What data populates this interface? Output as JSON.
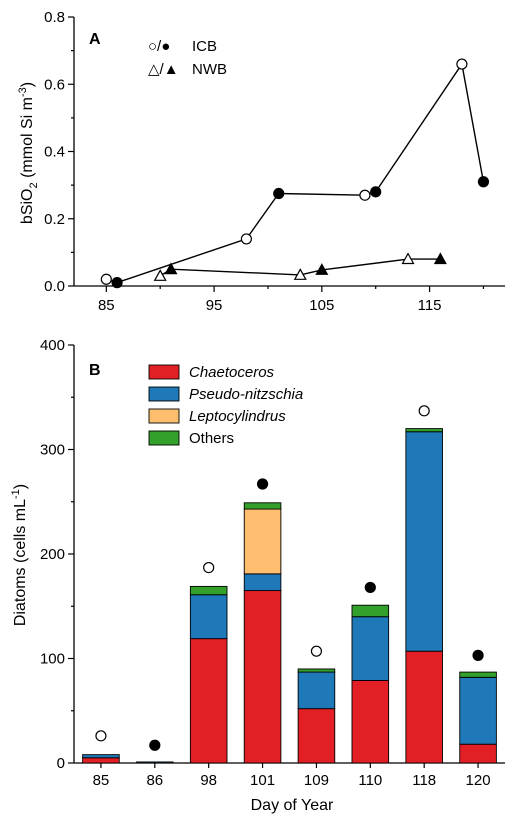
{
  "chart_data": [
    {
      "panel": "A",
      "type": "line",
      "ylabel_main": "bSiO",
      "ylabel_sub": "2",
      "ylabel_unit_pre": " (mmol Si m",
      "ylabel_unit_sup": "-3",
      "ylabel_unit_post": ")",
      "ylim": [
        0,
        0.8
      ],
      "yticks": [
        "0.0",
        "0.2",
        "0.4",
        "0.6",
        "0.8"
      ],
      "xlim": [
        82,
        122
      ],
      "xticks": [
        "85",
        "95",
        "105",
        "115"
      ],
      "grid": false,
      "legend_position": "top-left",
      "series": [
        {
          "name": "ICB",
          "legend_symbol": "○/●",
          "marker": "circle",
          "points": [
            {
              "x": 85,
              "y": 0.02,
              "filled": false
            },
            {
              "x": 86,
              "y": 0.01,
              "filled": true
            },
            {
              "x": 98,
              "y": 0.14,
              "filled": false
            },
            {
              "x": 101,
              "y": 0.275,
              "filled": true
            },
            {
              "x": 109,
              "y": 0.27,
              "filled": false
            },
            {
              "x": 110,
              "y": 0.28,
              "filled": true
            },
            {
              "x": 118,
              "y": 0.66,
              "filled": false
            },
            {
              "x": 120,
              "y": 0.31,
              "filled": true
            }
          ]
        },
        {
          "name": "NWB",
          "legend_symbol": "△/▲",
          "marker": "triangle",
          "points": [
            {
              "x": 90,
              "y": 0.03,
              "filled": false
            },
            {
              "x": 91,
              "y": 0.05,
              "filled": true
            },
            {
              "x": 103,
              "y": 0.033,
              "filled": false
            },
            {
              "x": 105,
              "y": 0.048,
              "filled": true
            },
            {
              "x": 113,
              "y": 0.08,
              "filled": false
            },
            {
              "x": 116,
              "y": 0.08,
              "filled": true
            }
          ]
        }
      ]
    },
    {
      "panel": "B",
      "type": "bar",
      "ylabel_main": "Diatoms (cells mL",
      "ylabel_sup": "-1",
      "ylabel_post": ")",
      "xlabel": "Day of Year",
      "ylim": [
        0,
        400
      ],
      "yticks": [
        "0",
        "100",
        "200",
        "300",
        "400"
      ],
      "categories": [
        "85",
        "86",
        "98",
        "101",
        "109",
        "110",
        "118",
        "120"
      ],
      "stacked": true,
      "grid": false,
      "legend_position": "top-left",
      "series": [
        {
          "name": "Chaetoceros",
          "italic": true,
          "color": "#e31f26",
          "values": [
            5,
            0,
            119,
            165,
            52,
            79,
            107,
            18
          ]
        },
        {
          "name": "Pseudo-nitzschia",
          "italic": true,
          "color": "#1f78b8",
          "values": [
            3,
            1,
            42,
            16,
            35,
            61,
            210,
            64
          ]
        },
        {
          "name": "Leptocylindrus",
          "italic": true,
          "color": "#fdbf6f",
          "values": [
            0,
            0,
            0,
            62,
            0,
            0,
            0,
            0
          ]
        },
        {
          "name": "Others",
          "italic": false,
          "color": "#33a02c",
          "values": [
            0,
            0,
            8,
            6,
            3,
            11,
            3,
            5
          ]
        }
      ],
      "markers": [
        {
          "category": "85",
          "value": 26,
          "filled": false
        },
        {
          "category": "86",
          "value": 17,
          "filled": true
        },
        {
          "category": "98",
          "value": 187,
          "filled": false
        },
        {
          "category": "101",
          "value": 267,
          "filled": true
        },
        {
          "category": "109",
          "value": 107,
          "filled": false
        },
        {
          "category": "110",
          "value": 168,
          "filled": true
        },
        {
          "category": "118",
          "value": 337,
          "filled": false
        },
        {
          "category": "120",
          "value": 103,
          "filled": true
        }
      ]
    }
  ]
}
